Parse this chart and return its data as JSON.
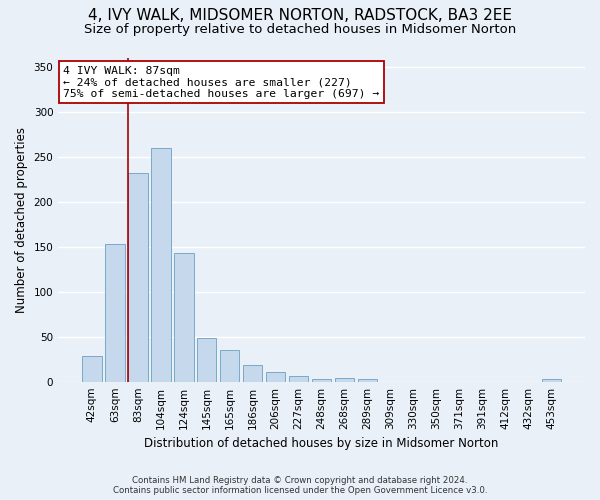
{
  "title": "4, IVY WALK, MIDSOMER NORTON, RADSTOCK, BA3 2EE",
  "subtitle": "Size of property relative to detached houses in Midsomer Norton",
  "xlabel": "Distribution of detached houses by size in Midsomer Norton",
  "ylabel": "Number of detached properties",
  "footnote1": "Contains HM Land Registry data © Crown copyright and database right 2024.",
  "footnote2": "Contains public sector information licensed under the Open Government Licence v3.0.",
  "bar_labels": [
    "42sqm",
    "63sqm",
    "83sqm",
    "104sqm",
    "124sqm",
    "145sqm",
    "165sqm",
    "186sqm",
    "206sqm",
    "227sqm",
    "248sqm",
    "268sqm",
    "289sqm",
    "309sqm",
    "330sqm",
    "350sqm",
    "371sqm",
    "391sqm",
    "412sqm",
    "432sqm",
    "453sqm"
  ],
  "bar_values": [
    29,
    153,
    232,
    260,
    143,
    49,
    35,
    18,
    11,
    6,
    3,
    4,
    3,
    0,
    0,
    0,
    0,
    0,
    0,
    0,
    3
  ],
  "bar_color": "#c5d8ec",
  "bar_edge_color": "#7aaac8",
  "vline_x_index": 1.57,
  "vline_color": "#aa0000",
  "annotation_text": "4 IVY WALK: 87sqm\n← 24% of detached houses are smaller (227)\n75% of semi-detached houses are larger (697) →",
  "annotation_box_color": "#ffffff",
  "annotation_box_edge": "#aa0000",
  "ylim": [
    0,
    360
  ],
  "yticks": [
    0,
    50,
    100,
    150,
    200,
    250,
    300,
    350
  ],
  "bg_color": "#eaf0f8",
  "grid_color": "#d0dae8",
  "title_fontsize": 11,
  "subtitle_fontsize": 9.5
}
